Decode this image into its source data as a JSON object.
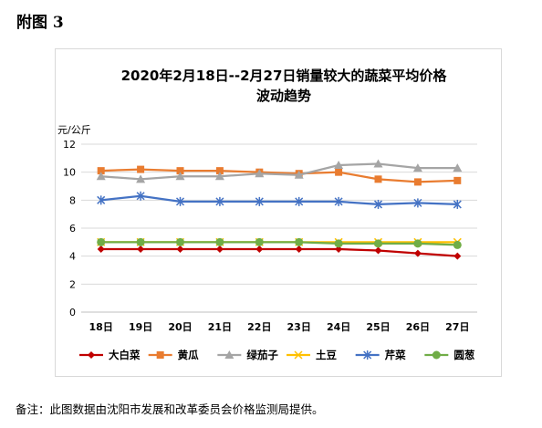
{
  "figure_label": "附图 3",
  "footnote": "备注：此图数据由沈阳市发展和改革委员会价格监测局提供。",
  "chart_data": {
    "type": "line",
    "title": "2020年2月18日--2月27日销量较大的蔬菜平均价格",
    "subtitle": "波动趋势",
    "ylabel": "元/公斤",
    "xlabel": "",
    "ylim": [
      0,
      12
    ],
    "yticks": [
      0,
      2,
      4,
      6,
      8,
      10,
      12
    ],
    "grid": true,
    "legend_position": "bottom",
    "categories": [
      "18日",
      "19日",
      "20日",
      "21日",
      "22日",
      "23日",
      "24日",
      "25日",
      "26日",
      "27日"
    ],
    "series": [
      {
        "name": "大白菜",
        "color": "#c00000",
        "marker": "diamond",
        "values": [
          4.5,
          4.5,
          4.5,
          4.5,
          4.5,
          4.5,
          4.5,
          4.4,
          4.2,
          4.0
        ]
      },
      {
        "name": "黄瓜",
        "color": "#e97c30",
        "marker": "square",
        "values": [
          10.1,
          10.2,
          10.1,
          10.1,
          10.0,
          9.9,
          10.0,
          9.5,
          9.3,
          9.4
        ]
      },
      {
        "name": "绿茄子",
        "color": "#a5a5a5",
        "marker": "triangle",
        "values": [
          9.7,
          9.5,
          9.7,
          9.7,
          9.9,
          9.8,
          10.5,
          10.6,
          10.3,
          10.3
        ]
      },
      {
        "name": "土豆",
        "color": "#ffc000",
        "marker": "x",
        "values": [
          5.0,
          5.0,
          5.0,
          5.0,
          5.0,
          5.0,
          5.0,
          5.0,
          5.0,
          5.0
        ]
      },
      {
        "name": "芹菜",
        "color": "#4472c4",
        "marker": "star",
        "values": [
          8.0,
          8.3,
          7.9,
          7.9,
          7.9,
          7.9,
          7.9,
          7.7,
          7.8,
          7.7
        ]
      },
      {
        "name": "圆葱",
        "color": "#70ad47",
        "marker": "circle",
        "values": [
          5.0,
          5.0,
          5.0,
          5.0,
          5.0,
          5.0,
          4.9,
          4.9,
          4.9,
          4.8
        ]
      }
    ]
  }
}
